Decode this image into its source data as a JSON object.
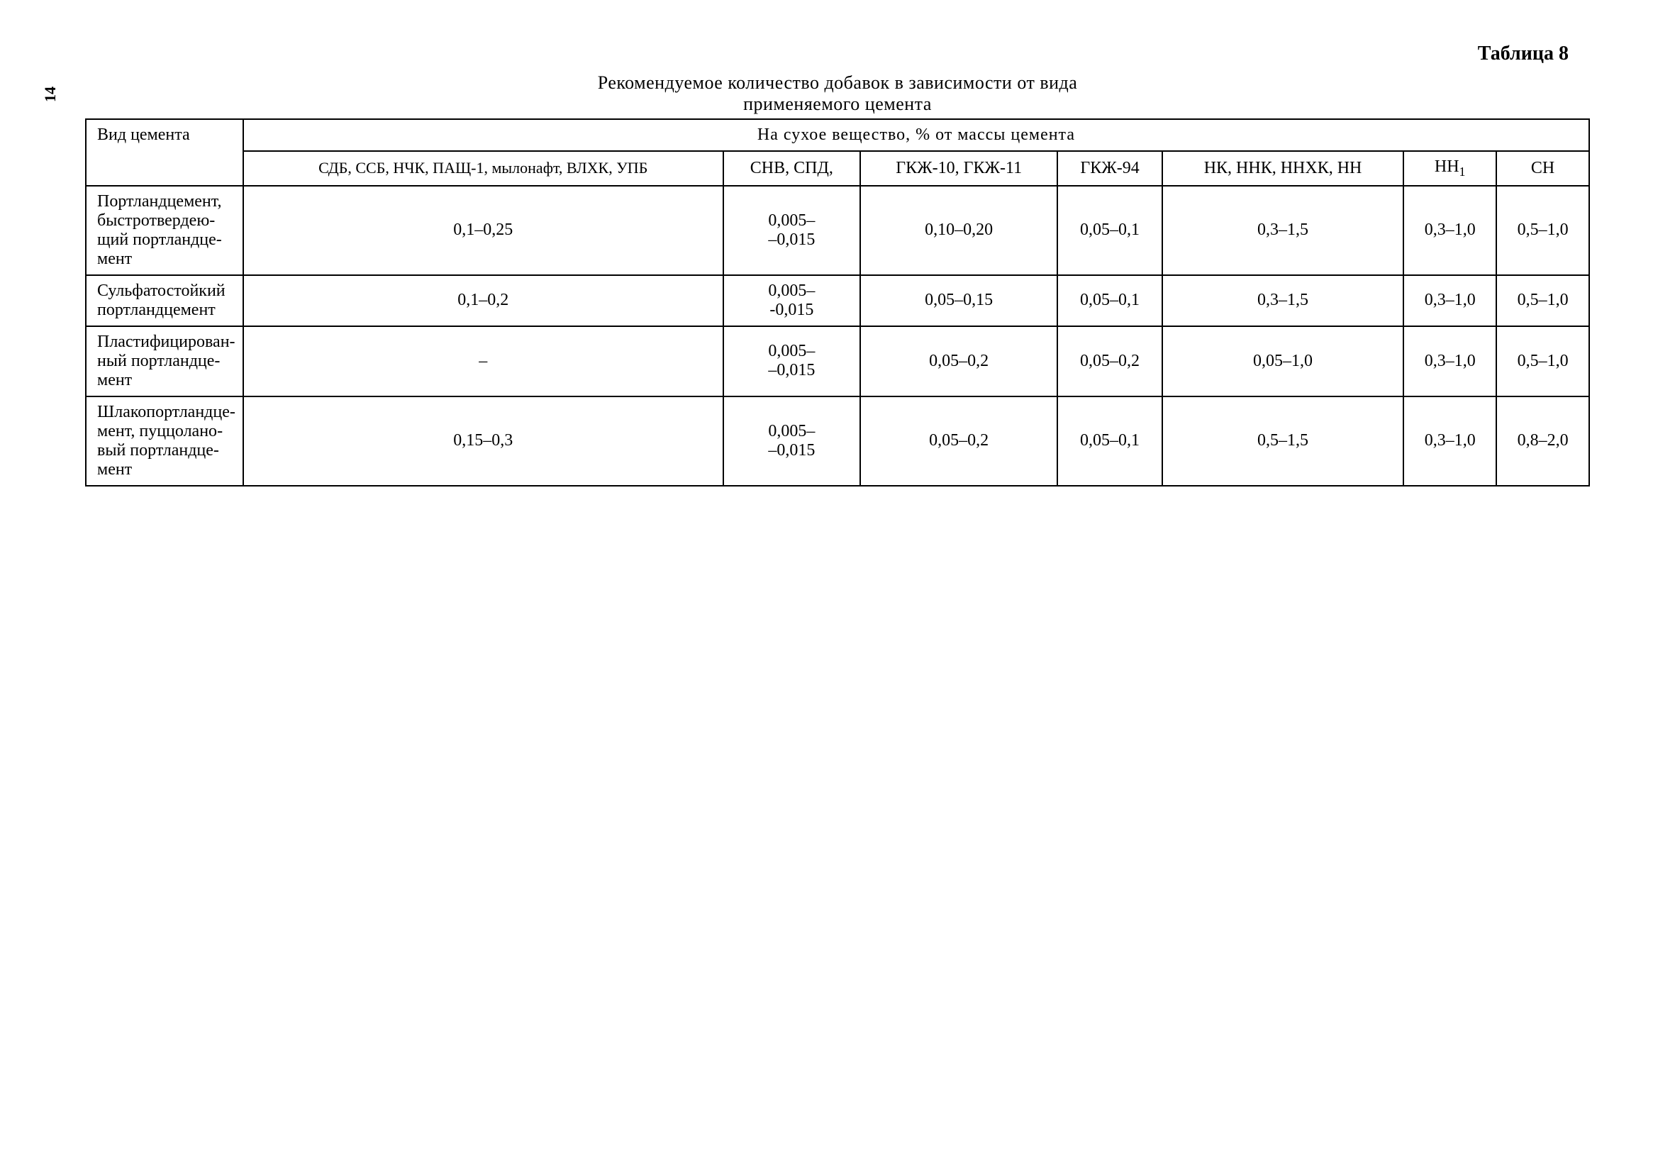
{
  "page_number": "14",
  "table_label": "Таблица 8",
  "caption_line1": "Рекомендуемое количество добавок в зависимости от вида",
  "caption_line2": "применяемого цемента",
  "super_header": "На сухое вещество, % от массы цемента",
  "columns": {
    "row_label": "Вид цемента",
    "c1": "СДБ, ССБ, НЧК, ПАЩ-1, мылонафт, ВЛХК, УПБ",
    "c2": "СНВ, СПД,",
    "c3": "ГКЖ-10, ГКЖ-11",
    "c4": "ГКЖ-94",
    "c5": "НК, ННК, ННХК, НН",
    "c6_prefix": "НН",
    "c6_sub": "1",
    "c7": "СН"
  },
  "rows": [
    {
      "label": "Портландцемент, быстротвердею­щий портландце­мент",
      "c1": "0,1–0,25",
      "c2": "0,005–\n–0,015",
      "c3": "0,10–0,20",
      "c4": "0,05–0,1",
      "c5": "0,3–1,5",
      "c6": "0,3–1,0",
      "c7": "0,5–1,0"
    },
    {
      "label": "Сульфатостойкий портландцемент",
      "c1": "0,1–0,2",
      "c2": "0,005–\n-0,015",
      "c3": "0,05–0,15",
      "c4": "0,05–0,1",
      "c5": "0,3–1,5",
      "c6": "0,3–1,0",
      "c7": "0,5–1,0"
    },
    {
      "label": "Пластифицирован­ный портландце­мент",
      "c1": "–",
      "c2": "0,005–\n–0,015",
      "c3": "0,05–0,2",
      "c4": "0,05–0,2",
      "c5": "0,05–1,0",
      "c6": "0,3–1,0",
      "c7": "0,5–1,0"
    },
    {
      "label": "Шлакопортландце­мент, пуццолано­вый портландце­мент",
      "c1": "0,15–0,3",
      "c2": "0,005–\n–0,015",
      "c3": "0,05–0,2",
      "c4": "0,05–0,1",
      "c5": "0,5–1,5",
      "c6": "0,3–1,0",
      "c7": "0,8–2,0"
    }
  ]
}
